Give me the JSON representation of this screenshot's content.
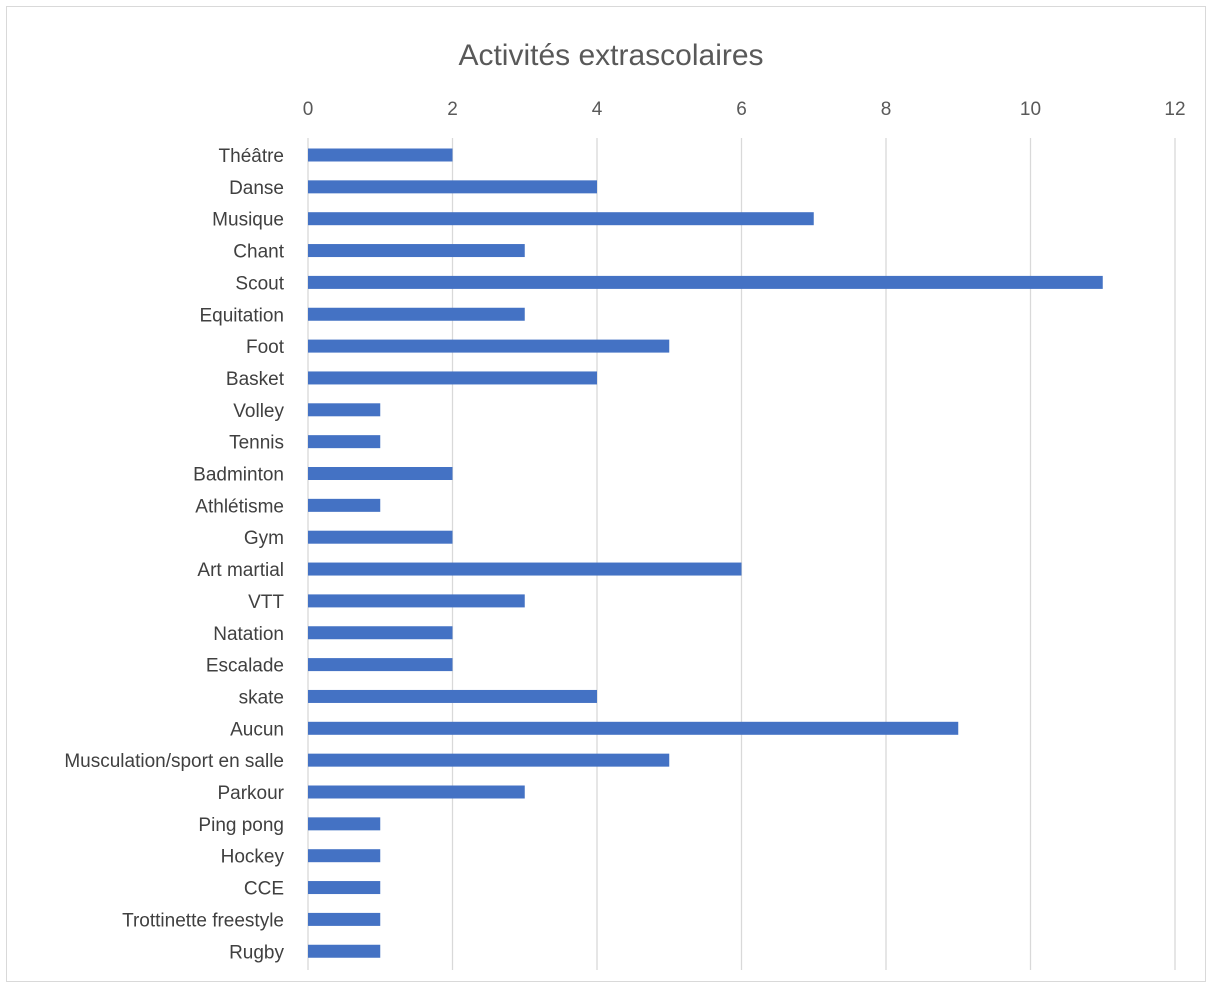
{
  "chart_data": {
    "type": "bar",
    "orientation": "horizontal",
    "title": "Activités extrascolaires",
    "xlim": [
      0,
      12
    ],
    "x_ticks": [
      0,
      2,
      4,
      6,
      8,
      10,
      12
    ],
    "x_axis_position": "top",
    "grid": true,
    "legend": "none",
    "bar_color": "#4472C4",
    "categories": [
      "Théâtre",
      "Danse",
      "Musique",
      "Chant",
      "Scout",
      "Equitation",
      "Foot",
      "Basket",
      "Volley",
      "Tennis",
      "Badminton",
      "Athlétisme",
      "Gym",
      "Art martial",
      "VTT",
      "Natation",
      "Escalade",
      "skate",
      "Aucun",
      "Musculation/sport en salle",
      "Parkour",
      "Ping pong",
      "Hockey",
      "CCE",
      "Trottinette freestyle",
      "Rugby"
    ],
    "values": [
      2,
      4,
      7,
      3,
      11,
      3,
      5,
      4,
      1,
      1,
      2,
      1,
      2,
      6,
      3,
      2,
      2,
      4,
      9,
      5,
      3,
      1,
      1,
      1,
      1,
      1
    ]
  }
}
